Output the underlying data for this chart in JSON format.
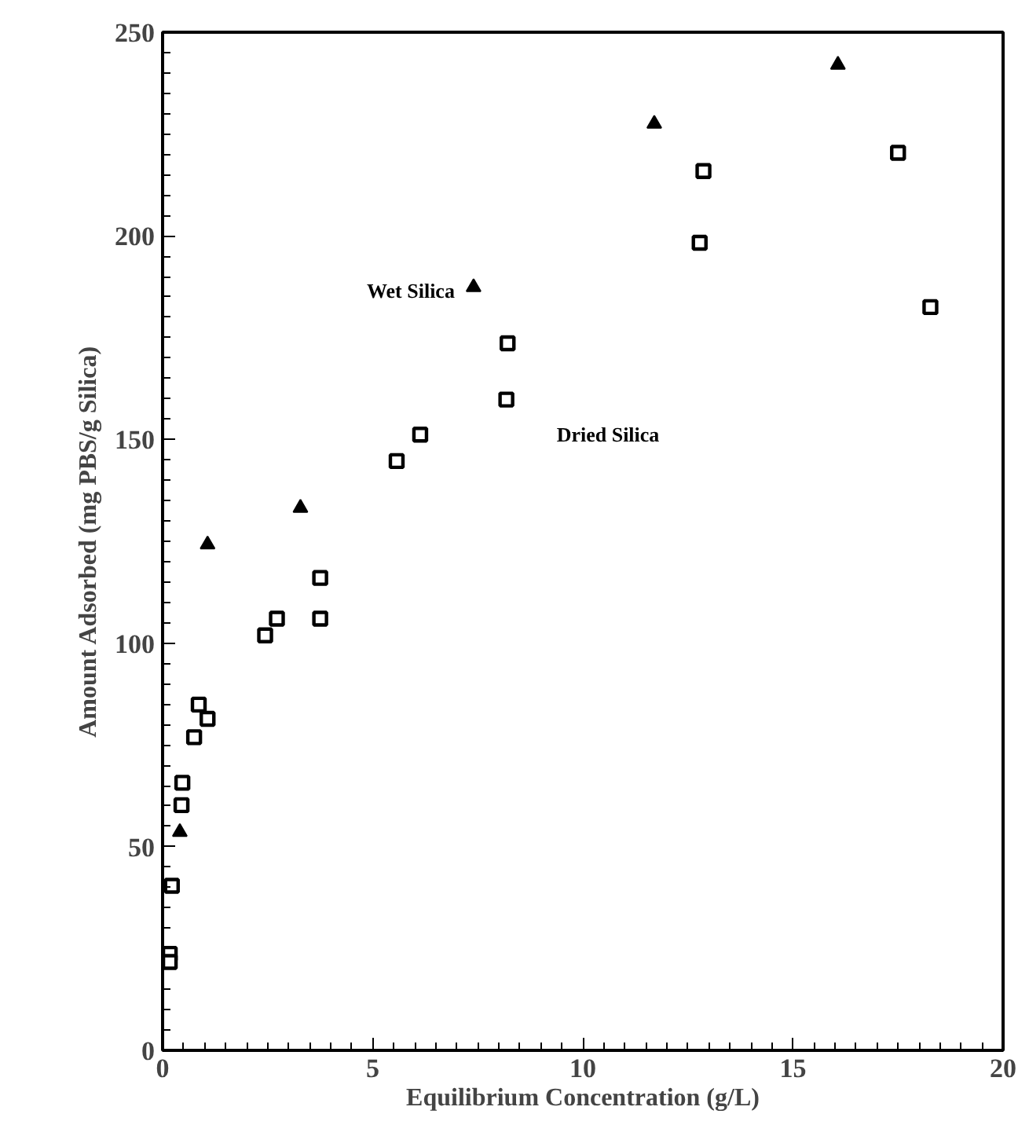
{
  "chart_data": {
    "type": "scatter",
    "xlabel": "Equilibrium Concentration (g/L)",
    "ylabel": "Amount Adsorbed (mg PBS/g Silica)",
    "xlim": [
      0,
      20
    ],
    "ylim": [
      0,
      250
    ],
    "xticks": [
      0,
      5,
      10,
      15,
      20
    ],
    "yticks": [
      0,
      50,
      100,
      150,
      200,
      250
    ],
    "grid": false,
    "series": [
      {
        "name": "Wet Silica",
        "color": "#000000",
        "marker": "triangle",
        "x": [
          0.41,
          1.07,
          3.28,
          7.4,
          11.7,
          16.07
        ],
        "values": [
          53.6,
          124.2,
          133.2,
          187.4,
          227.5,
          242.0
        ]
      },
      {
        "name": "Dried Silica",
        "color": "#000000",
        "marker": "square",
        "x": [
          0.17,
          0.17,
          0.22,
          0.45,
          0.47,
          0.75,
          0.86,
          1.07,
          2.44,
          2.72,
          3.75,
          3.75,
          5.57,
          6.13,
          8.18,
          8.21,
          12.78,
          12.87,
          17.5,
          18.27
        ],
        "values": [
          23.7,
          21.7,
          40.4,
          60.2,
          65.7,
          76.9,
          84.9,
          81.4,
          101.9,
          106.0,
          116.0,
          106.0,
          144.7,
          151.2,
          159.8,
          173.6,
          198.3,
          215.9,
          220.4,
          182.5
        ]
      }
    ]
  }
}
